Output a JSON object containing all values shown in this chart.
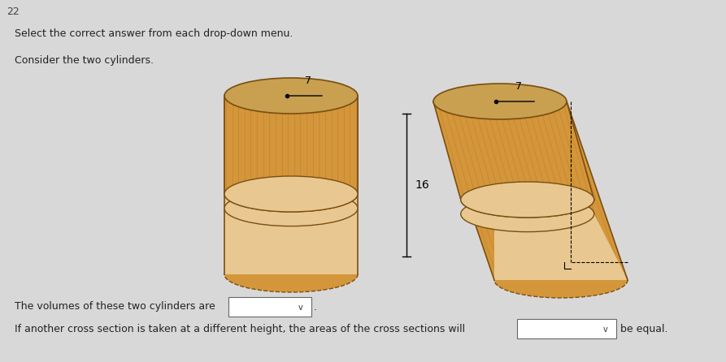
{
  "background_color": "#d8d8d8",
  "title_number": "22",
  "instruction_text": "Select the correct answer from each drop-down menu.",
  "consider_text": "Consider the two cylinders.",
  "bottom_text1": "The volumes of these two cylinders are",
  "bottom_text2": "If another cross section is taken at a different height, the areas of the cross sections will",
  "bottom_text3": "be equal.",
  "radius_label": "7",
  "height_label": "16",
  "cylinder_face": "#D4963A",
  "cylinder_dark": "#B8782A",
  "cylinder_edge": "#7A4E10",
  "cylinder_cross": "#E8C890",
  "cylinder_top": "#C8A050"
}
